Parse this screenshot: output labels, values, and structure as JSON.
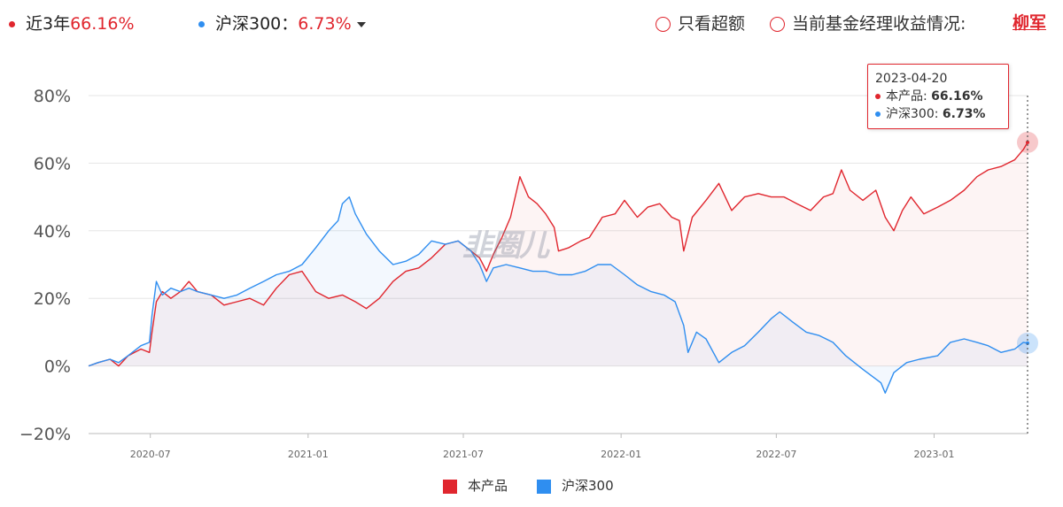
{
  "header": {
    "product_label": "近3年",
    "product_value": "66.16%",
    "benchmark_label": "沪深300：",
    "benchmark_value": "6.73%",
    "option_excess": "只看超额",
    "option_manager": "当前基金经理收益情况:",
    "manager_name": "柳军"
  },
  "tooltip": {
    "date": "2023-04-20",
    "product_label": "本产品: ",
    "product_value": "66.16%",
    "benchmark_label": "沪深300: ",
    "benchmark_value": "6.73%"
  },
  "watermark": "韭圈儿",
  "colors": {
    "product": "#e0262e",
    "benchmark": "#2f8ef0"
  },
  "chart_data": {
    "type": "line",
    "y_unit": "%",
    "ylim": [
      -20,
      80
    ],
    "yticks": [
      80,
      60,
      40,
      20,
      0,
      -20
    ],
    "ytick_labels": [
      "80%",
      "60%",
      "40%",
      "20%",
      "0%",
      "−20%"
    ],
    "xlim": [
      "2020-04-20",
      "2023-04-20"
    ],
    "xticks": [
      "2020-07-01",
      "2021-01-01",
      "2021-07-01",
      "2022-01-01",
      "2022-07-01",
      "2023-01-01"
    ],
    "xtick_labels": [
      "2020-07",
      "2021-01",
      "2021-07",
      "2022-01",
      "2022-07",
      "2023-01"
    ],
    "grid": true,
    "legend_position": "bottom",
    "series": [
      {
        "name": "本产品",
        "color": "#e0262e",
        "points": [
          [
            "2020-04-20",
            0
          ],
          [
            "2020-05-01",
            1
          ],
          [
            "2020-05-15",
            2
          ],
          [
            "2020-05-25",
            0
          ],
          [
            "2020-06-05",
            3
          ],
          [
            "2020-06-20",
            5
          ],
          [
            "2020-06-30",
            4
          ],
          [
            "2020-07-03",
            10
          ],
          [
            "2020-07-08",
            19
          ],
          [
            "2020-07-15",
            22
          ],
          [
            "2020-07-25",
            20
          ],
          [
            "2020-08-05",
            22
          ],
          [
            "2020-08-15",
            25
          ],
          [
            "2020-08-25",
            22
          ],
          [
            "2020-09-10",
            21
          ],
          [
            "2020-09-25",
            18
          ],
          [
            "2020-10-10",
            19
          ],
          [
            "2020-10-25",
            20
          ],
          [
            "2020-11-10",
            18
          ],
          [
            "2020-11-25",
            23
          ],
          [
            "2020-12-10",
            27
          ],
          [
            "2020-12-25",
            28
          ],
          [
            "2021-01-10",
            22
          ],
          [
            "2021-01-25",
            20
          ],
          [
            "2021-02-10",
            21
          ],
          [
            "2021-02-25",
            19
          ],
          [
            "2021-03-10",
            17
          ],
          [
            "2021-03-25",
            20
          ],
          [
            "2021-04-10",
            25
          ],
          [
            "2021-04-25",
            28
          ],
          [
            "2021-05-10",
            29
          ],
          [
            "2021-05-25",
            32
          ],
          [
            "2021-06-10",
            36
          ],
          [
            "2021-06-25",
            37
          ],
          [
            "2021-07-10",
            34
          ],
          [
            "2021-07-20",
            32
          ],
          [
            "2021-07-28",
            28
          ],
          [
            "2021-08-05",
            33
          ],
          [
            "2021-08-15",
            38
          ],
          [
            "2021-08-25",
            44
          ],
          [
            "2021-09-05",
            56
          ],
          [
            "2021-09-15",
            50
          ],
          [
            "2021-09-25",
            48
          ],
          [
            "2021-10-05",
            45
          ],
          [
            "2021-10-15",
            41
          ],
          [
            "2021-10-20",
            34
          ],
          [
            "2021-11-01",
            35
          ],
          [
            "2021-11-15",
            37
          ],
          [
            "2021-11-25",
            38
          ],
          [
            "2021-12-10",
            44
          ],
          [
            "2021-12-25",
            45
          ],
          [
            "2022-01-05",
            49
          ],
          [
            "2022-01-20",
            44
          ],
          [
            "2022-02-01",
            47
          ],
          [
            "2022-02-15",
            48
          ],
          [
            "2022-03-01",
            44
          ],
          [
            "2022-03-10",
            43
          ],
          [
            "2022-03-15",
            34
          ],
          [
            "2022-03-25",
            44
          ],
          [
            "2022-04-10",
            49
          ],
          [
            "2022-04-25",
            54
          ],
          [
            "2022-05-10",
            46
          ],
          [
            "2022-05-25",
            50
          ],
          [
            "2022-06-10",
            51
          ],
          [
            "2022-06-25",
            50
          ],
          [
            "2022-07-10",
            50
          ],
          [
            "2022-07-25",
            48
          ],
          [
            "2022-08-10",
            46
          ],
          [
            "2022-08-25",
            50
          ],
          [
            "2022-09-05",
            51
          ],
          [
            "2022-09-15",
            58
          ],
          [
            "2022-09-25",
            52
          ],
          [
            "2022-10-10",
            49
          ],
          [
            "2022-10-25",
            52
          ],
          [
            "2022-11-05",
            44
          ],
          [
            "2022-11-15",
            40
          ],
          [
            "2022-11-25",
            46
          ],
          [
            "2022-12-05",
            50
          ],
          [
            "2022-12-20",
            45
          ],
          [
            "2023-01-05",
            47
          ],
          [
            "2023-01-20",
            49
          ],
          [
            "2023-02-05",
            52
          ],
          [
            "2023-02-20",
            56
          ],
          [
            "2023-03-05",
            58
          ],
          [
            "2023-03-20",
            59
          ],
          [
            "2023-04-05",
            61
          ],
          [
            "2023-04-15",
            64
          ],
          [
            "2023-04-20",
            66.16
          ]
        ]
      },
      {
        "name": "沪深300",
        "color": "#2f8ef0",
        "points": [
          [
            "2020-04-20",
            0
          ],
          [
            "2020-05-01",
            1
          ],
          [
            "2020-05-15",
            2
          ],
          [
            "2020-05-25",
            1
          ],
          [
            "2020-06-05",
            3
          ],
          [
            "2020-06-20",
            6
          ],
          [
            "2020-06-30",
            7
          ],
          [
            "2020-07-03",
            15
          ],
          [
            "2020-07-08",
            25
          ],
          [
            "2020-07-15",
            21
          ],
          [
            "2020-07-25",
            23
          ],
          [
            "2020-08-05",
            22
          ],
          [
            "2020-08-15",
            23
          ],
          [
            "2020-08-25",
            22
          ],
          [
            "2020-09-10",
            21
          ],
          [
            "2020-09-25",
            20
          ],
          [
            "2020-10-10",
            21
          ],
          [
            "2020-10-25",
            23
          ],
          [
            "2020-11-10",
            25
          ],
          [
            "2020-11-25",
            27
          ],
          [
            "2020-12-10",
            28
          ],
          [
            "2020-12-25",
            30
          ],
          [
            "2021-01-10",
            35
          ],
          [
            "2021-01-25",
            40
          ],
          [
            "2021-02-05",
            43
          ],
          [
            "2021-02-10",
            48
          ],
          [
            "2021-02-18",
            50
          ],
          [
            "2021-02-25",
            45
          ],
          [
            "2021-03-10",
            39
          ],
          [
            "2021-03-25",
            34
          ],
          [
            "2021-04-10",
            30
          ],
          [
            "2021-04-25",
            31
          ],
          [
            "2021-05-10",
            33
          ],
          [
            "2021-05-25",
            37
          ],
          [
            "2021-06-10",
            36
          ],
          [
            "2021-06-25",
            37
          ],
          [
            "2021-07-10",
            34
          ],
          [
            "2021-07-20",
            30
          ],
          [
            "2021-07-28",
            25
          ],
          [
            "2021-08-05",
            29
          ],
          [
            "2021-08-20",
            30
          ],
          [
            "2021-09-05",
            29
          ],
          [
            "2021-09-20",
            28
          ],
          [
            "2021-10-05",
            28
          ],
          [
            "2021-10-20",
            27
          ],
          [
            "2021-11-05",
            27
          ],
          [
            "2021-11-20",
            28
          ],
          [
            "2021-12-05",
            30
          ],
          [
            "2021-12-20",
            30
          ],
          [
            "2022-01-05",
            27
          ],
          [
            "2022-01-20",
            24
          ],
          [
            "2022-02-05",
            22
          ],
          [
            "2022-02-20",
            21
          ],
          [
            "2022-03-05",
            19
          ],
          [
            "2022-03-15",
            12
          ],
          [
            "2022-03-20",
            4
          ],
          [
            "2022-03-30",
            10
          ],
          [
            "2022-04-10",
            8
          ],
          [
            "2022-04-25",
            1
          ],
          [
            "2022-05-10",
            4
          ],
          [
            "2022-05-25",
            6
          ],
          [
            "2022-06-10",
            10
          ],
          [
            "2022-06-25",
            14
          ],
          [
            "2022-07-05",
            16
          ],
          [
            "2022-07-20",
            13
          ],
          [
            "2022-08-05",
            10
          ],
          [
            "2022-08-20",
            9
          ],
          [
            "2022-09-05",
            7
          ],
          [
            "2022-09-20",
            3
          ],
          [
            "2022-10-10",
            -1
          ],
          [
            "2022-10-31",
            -5
          ],
          [
            "2022-11-05",
            -8
          ],
          [
            "2022-11-15",
            -2
          ],
          [
            "2022-11-30",
            1
          ],
          [
            "2022-12-15",
            2
          ],
          [
            "2023-01-05",
            3
          ],
          [
            "2023-01-20",
            7
          ],
          [
            "2023-02-05",
            8
          ],
          [
            "2023-02-20",
            7
          ],
          [
            "2023-03-05",
            6
          ],
          [
            "2023-03-20",
            4
          ],
          [
            "2023-04-05",
            5
          ],
          [
            "2023-04-15",
            7
          ],
          [
            "2023-04-20",
            6.73
          ]
        ]
      }
    ]
  },
  "bottom_legend": {
    "product": "本产品",
    "benchmark": "沪深300"
  }
}
